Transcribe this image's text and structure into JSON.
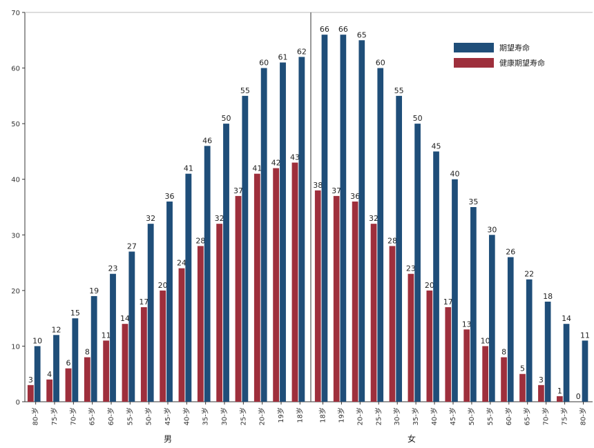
{
  "chart_data": {
    "type": "bar",
    "ylim": [
      0,
      70
    ],
    "yticks": [
      0,
      10,
      20,
      30,
      40,
      50,
      60,
      70
    ],
    "grid": false,
    "legend_position": "top-right",
    "colors": {
      "life": "#1f4e79",
      "healthy": "#9e2f3c",
      "axis": "#333333"
    },
    "groups": [
      {
        "label": "男",
        "categories": [
          "80-岁",
          "75-岁",
          "70-岁",
          "65-岁",
          "60-岁",
          "55-岁",
          "50-岁",
          "45-岁",
          "40-岁",
          "35-岁",
          "30-岁",
          "25-岁",
          "20-岁",
          "19岁",
          "18岁"
        ],
        "series": [
          {
            "name": "期望寿命",
            "values": [
              10,
              12,
              15,
              19,
              23,
              27,
              32,
              36,
              41,
              46,
              50,
              55,
              60,
              61,
              62
            ]
          },
          {
            "name": "健康期望寿命",
            "values": [
              3,
              4,
              6,
              8,
              11,
              14,
              17,
              20,
              24,
              28,
              32,
              37,
              41,
              42,
              43
            ]
          }
        ]
      },
      {
        "label": "女",
        "categories": [
          "18岁",
          "19岁",
          "20-岁",
          "25-岁",
          "30-岁",
          "35-岁",
          "40-岁",
          "45-岁",
          "50-岁",
          "55-岁",
          "60-岁",
          "65-岁",
          "70-岁",
          "75-岁",
          "80-岁"
        ],
        "series": [
          {
            "name": "期望寿命",
            "values": [
              66,
              66,
              65,
              60,
              55,
              50,
              45,
              40,
              35,
              30,
              26,
              22,
              18,
              14,
              11
            ]
          },
          {
            "name": "健康期望寿命",
            "values": [
              38,
              37,
              36,
              32,
              28,
              23,
              20,
              17,
              13,
              10,
              8,
              5,
              3,
              1,
              0
            ]
          }
        ]
      }
    ],
    "legend": [
      {
        "name": "期望寿命",
        "color": "#1f4e79"
      },
      {
        "name": "健康期望寿命",
        "color": "#9e2f3c"
      }
    ]
  }
}
